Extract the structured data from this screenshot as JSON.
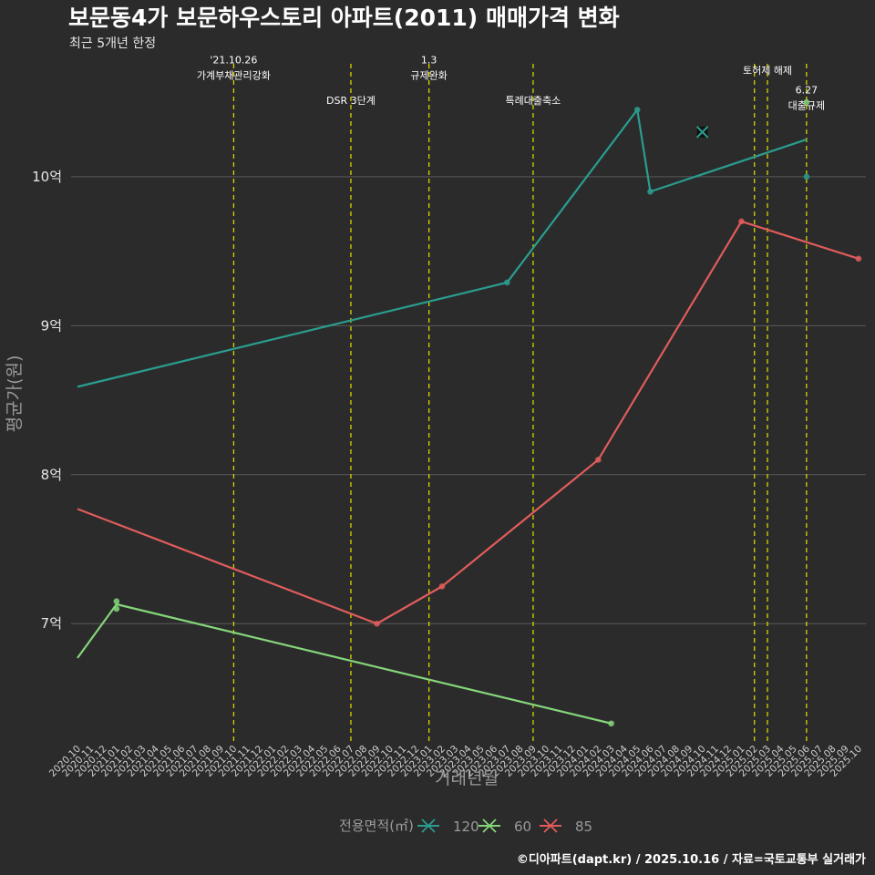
{
  "chart_data": {
    "type": "line",
    "title": "보문동4가 보문하우스토리 아파트(2011) 매매가격 변화",
    "subtitle": "최근 5개년 한정",
    "xlabel": "거래년월",
    "ylabel": "평균가(원)",
    "legend_title": "전용면적(㎡)",
    "caption": "©디아파트(dapt.kr) / 2025.10.16 / 자료=국토교통부 실거래가",
    "x_categories": [
      "2020.10",
      "2020.11",
      "2020.12",
      "2021.01",
      "2021.02",
      "2021.03",
      "2021.04",
      "2021.05",
      "2021.06",
      "2021.07",
      "2021.08",
      "2021.09",
      "2021.10",
      "2021.11",
      "2021.12",
      "2022.01",
      "2022.02",
      "2022.03",
      "2022.04",
      "2022.05",
      "2022.06",
      "2022.07",
      "2022.08",
      "2022.09",
      "2022.10",
      "2022.11",
      "2022.12",
      "2023.01",
      "2023.02",
      "2023.03",
      "2023.04",
      "2023.05",
      "2023.06",
      "2023.07",
      "2023.08",
      "2023.09",
      "2023.10",
      "2023.11",
      "2023.12",
      "2024.01",
      "2024.02",
      "2024.03",
      "2024.04",
      "2024.05",
      "2024.06",
      "2024.07",
      "2024.08",
      "2024.09",
      "2024.10",
      "2024.11",
      "2024.12",
      "2025.01",
      "2025.02",
      "2025.03",
      "2025.04",
      "2025.05",
      "2025.06",
      "2025.07",
      "2025.08",
      "2025.09",
      "2025.10"
    ],
    "y_ticks": [
      7,
      8,
      9,
      10
    ],
    "y_tick_labels": [
      "7억",
      "8억",
      "9억",
      "10억"
    ],
    "y_range": [
      6.2,
      10.85
    ],
    "series": [
      {
        "name": "120",
        "color": "#2a9d8f",
        "line": [
          [
            "2020.10",
            8.59
          ],
          [
            "2023.07",
            9.29
          ],
          [
            "2024.05",
            10.45
          ],
          [
            "2024.06",
            9.9
          ],
          [
            "2025.06",
            10.25
          ]
        ],
        "points": [
          [
            "2023.07",
            9.29
          ],
          [
            "2024.05",
            10.45
          ],
          [
            "2024.06",
            9.9
          ],
          [
            "2025.06",
            10.0
          ]
        ],
        "cross_points": [
          [
            "2024.10",
            10.3
          ]
        ]
      },
      {
        "name": "60",
        "color": "#85d67a",
        "line": [
          [
            "2020.10",
            6.77
          ],
          [
            "2021.01",
            7.13
          ],
          [
            "2024.03",
            6.33
          ]
        ],
        "points": [
          [
            "2021.01",
            7.15
          ],
          [
            "2021.01",
            7.1
          ],
          [
            "2024.03",
            6.33
          ],
          [
            "2025.06",
            10.5
          ]
        ],
        "cross_points": []
      },
      {
        "name": "85",
        "color": "#e05c5c",
        "line": [
          [
            "2020.10",
            7.77
          ],
          [
            "2022.09",
            7.0
          ],
          [
            "2023.02",
            7.25
          ],
          [
            "2024.02",
            8.1
          ],
          [
            "2025.01",
            9.7
          ],
          [
            "2025.10",
            9.45
          ]
        ],
        "points": [
          [
            "2022.09",
            7.0
          ],
          [
            "2023.02",
            7.25
          ],
          [
            "2024.02",
            8.1
          ],
          [
            "2025.01",
            9.7
          ],
          [
            "2025.10",
            9.45
          ]
        ],
        "cross_points": []
      }
    ],
    "events": [
      {
        "x": "2021.10",
        "lines": [
          "'21.10.26",
          "가계부채관리강화"
        ],
        "label_y": 10.76
      },
      {
        "x": "2022.07",
        "lines": [
          "DSR 3단계"
        ],
        "label_y": 10.49
      },
      {
        "x": "2023.01",
        "lines": [
          "1.3",
          "규제완화"
        ],
        "label_y": 10.76
      },
      {
        "x": "2023.09",
        "lines": [
          "특례대출축소"
        ],
        "label_y": 10.49
      },
      {
        "x": "2025.02",
        "lines": [],
        "label_y": 0
      },
      {
        "x": "2025.03",
        "lines": [
          "토허제 해제"
        ],
        "label_y": 10.69
      },
      {
        "x": "2025.06",
        "lines": [
          "6.27",
          "대출규제"
        ],
        "label_y": 10.56
      }
    ],
    "colors": {
      "background": "#2b2b2b",
      "grid": "#5a5a5a",
      "event_line": "#d6d600",
      "muted_text": "#9a9a9a"
    }
  }
}
